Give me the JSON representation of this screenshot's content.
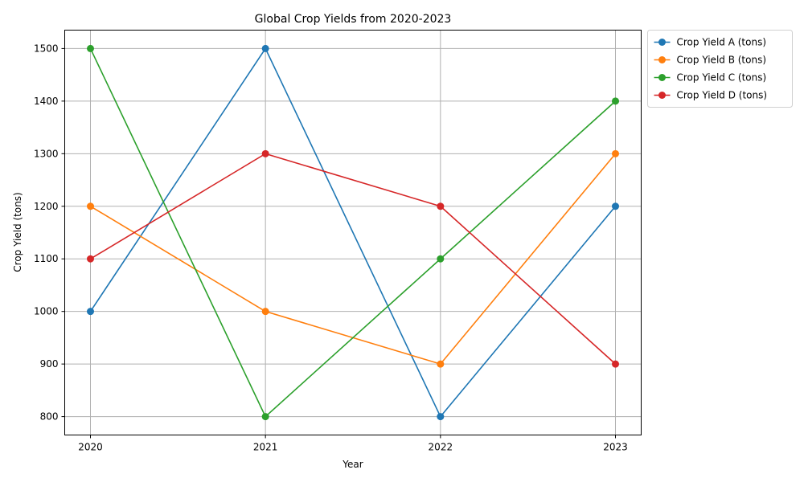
{
  "chart_data": {
    "type": "line",
    "title": "Global Crop Yields from 2020-2023",
    "xlabel": "Year",
    "ylabel": "Crop Yield (tons)",
    "x": [
      "2020",
      "2021",
      "2022",
      "2023"
    ],
    "yticks": [
      "800",
      "900",
      "1000",
      "1100",
      "1200",
      "1300",
      "1400",
      "1500"
    ],
    "ylim": [
      765,
      1535
    ],
    "grid": true,
    "legend_position": "outside-top-right",
    "series": [
      {
        "name": "Crop Yield A (tons)",
        "color": "#1f77b4",
        "values": [
          1000,
          1500,
          800,
          1200
        ]
      },
      {
        "name": "Crop Yield B (tons)",
        "color": "#ff7f0e",
        "values": [
          1200,
          1000,
          900,
          1300
        ]
      },
      {
        "name": "Crop Yield C (tons)",
        "color": "#2ca02c",
        "values": [
          1500,
          800,
          1100,
          1400
        ]
      },
      {
        "name": "Crop Yield D (tons)",
        "color": "#d62728",
        "values": [
          1100,
          1300,
          1200,
          900
        ]
      }
    ],
    "marker": "circle"
  }
}
